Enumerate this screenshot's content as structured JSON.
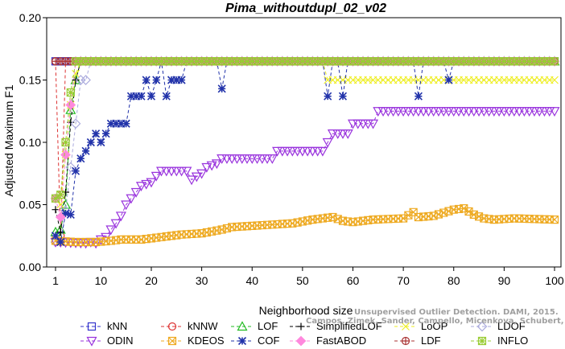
{
  "chart_data": {
    "type": "line",
    "title": "Pima_withoutdupl_02_v02",
    "xlabel": "Neighborhood size",
    "ylabel": "Adjusted Maximum F1",
    "xlim": [
      1,
      100
    ],
    "ylim": [
      0,
      0.2
    ],
    "xticks": [
      1,
      10,
      20,
      30,
      40,
      50,
      60,
      70,
      80,
      90,
      100
    ],
    "yticks": [
      0,
      0.05,
      0.1,
      0.15,
      0.2
    ],
    "ytick_labels": [
      "0.00",
      "0.05",
      "0.10",
      "0.15",
      "0.20"
    ],
    "grid": false,
    "legend_position": "bottom",
    "watermark": [
      "Campos, Zimek, Sander, Campello, Micenkova, Schubert, Assent, Houle",
      "Unsupervised Outlier Detection. DAMI, 2015."
    ],
    "series": [
      {
        "name": "kNN",
        "color": "#3333cc",
        "marker": "square",
        "dash": "4,3",
        "points": [
          [
            1,
            0.165
          ],
          [
            100,
            0.165
          ]
        ]
      },
      {
        "name": "kNNW",
        "color": "#dd3333",
        "marker": "circle",
        "dash": "4,3",
        "points": [
          [
            1,
            0.165
          ],
          [
            2,
            0.025
          ],
          [
            3,
            0.165
          ],
          [
            100,
            0.165
          ]
        ]
      },
      {
        "name": "LOF",
        "color": "#22bb22",
        "marker": "triangle-up",
        "dash": "4,3",
        "points": [
          [
            1,
            0.028
          ],
          [
            2,
            0.03
          ],
          [
            3,
            0.05
          ],
          [
            4,
            0.126
          ],
          [
            5,
            0.15
          ],
          [
            6,
            0.165
          ],
          [
            100,
            0.165
          ]
        ]
      },
      {
        "name": "SimplifiedLOF",
        "color": "#000000",
        "marker": "plus",
        "dash": "4,3",
        "points": [
          [
            1,
            0.046
          ],
          [
            2,
            0.028
          ],
          [
            3,
            0.06
          ],
          [
            4,
            0.116
          ],
          [
            5,
            0.15
          ],
          [
            6,
            0.165
          ],
          [
            100,
            0.165
          ]
        ]
      },
      {
        "name": "LoOP",
        "color": "#eeee22",
        "marker": "x",
        "dash": "4,3",
        "points": [
          [
            1,
            0.055
          ],
          [
            2,
            0.05
          ],
          [
            3,
            0.09
          ],
          [
            4,
            0.13
          ],
          [
            5,
            0.155
          ],
          [
            6,
            0.165
          ],
          [
            54,
            0.165
          ],
          [
            55,
            0.15
          ],
          [
            100,
            0.15
          ]
        ]
      },
      {
        "name": "LDOF",
        "color": "#aaaadd",
        "marker": "diamond",
        "dash": "4,3",
        "points": [
          [
            1,
            0.02
          ],
          [
            2,
            0.02
          ],
          [
            3,
            0.045
          ],
          [
            4,
            0.08
          ],
          [
            5,
            0.115
          ],
          [
            6,
            0.15
          ],
          [
            7,
            0.15
          ],
          [
            8,
            0.165
          ],
          [
            100,
            0.165
          ]
        ]
      },
      {
        "name": "ODIN",
        "color": "#9933dd",
        "marker": "triangle-down",
        "dash": "4,3",
        "points": [
          [
            1,
            0.02
          ],
          [
            7,
            0.019
          ],
          [
            8,
            0.02
          ],
          [
            9,
            0.019
          ],
          [
            10,
            0.022
          ],
          [
            11,
            0.024
          ],
          [
            12,
            0.03
          ],
          [
            13,
            0.035
          ],
          [
            14,
            0.041
          ],
          [
            15,
            0.05
          ],
          [
            16,
            0.055
          ],
          [
            17,
            0.06
          ],
          [
            18,
            0.065
          ],
          [
            20,
            0.068
          ],
          [
            21,
            0.073
          ],
          [
            22,
            0.077
          ],
          [
            27,
            0.077
          ],
          [
            28,
            0.07
          ],
          [
            30,
            0.075
          ],
          [
            31,
            0.08
          ],
          [
            33,
            0.083
          ],
          [
            34,
            0.087
          ],
          [
            44,
            0.087
          ],
          [
            45,
            0.093
          ],
          [
            54,
            0.093
          ],
          [
            55,
            0.1
          ],
          [
            56,
            0.107
          ],
          [
            59,
            0.107
          ],
          [
            60,
            0.115
          ],
          [
            64,
            0.115
          ],
          [
            65,
            0.125
          ],
          [
            100,
            0.125
          ]
        ]
      },
      {
        "name": "KDEOS",
        "color": "#eeaa22",
        "marker": "square-x",
        "dash": "4,3",
        "points": [
          [
            1,
            0.021
          ],
          [
            5,
            0.02
          ],
          [
            9,
            0.02
          ],
          [
            12,
            0.021
          ],
          [
            14,
            0.022
          ],
          [
            18,
            0.022
          ],
          [
            22,
            0.024
          ],
          [
            26,
            0.026
          ],
          [
            30,
            0.027
          ],
          [
            34,
            0.03
          ],
          [
            36,
            0.032
          ],
          [
            40,
            0.033
          ],
          [
            44,
            0.034
          ],
          [
            48,
            0.035
          ],
          [
            52,
            0.038
          ],
          [
            56,
            0.04
          ],
          [
            58,
            0.037
          ],
          [
            60,
            0.036
          ],
          [
            64,
            0.038
          ],
          [
            70,
            0.039
          ],
          [
            72,
            0.044
          ],
          [
            73,
            0.04
          ],
          [
            76,
            0.041
          ],
          [
            80,
            0.046
          ],
          [
            82,
            0.047
          ],
          [
            84,
            0.042
          ],
          [
            86,
            0.039
          ],
          [
            88,
            0.038
          ],
          [
            92,
            0.039
          ],
          [
            100,
            0.038
          ]
        ]
      },
      {
        "name": "COF",
        "color": "#2233aa",
        "marker": "star",
        "dash": "4,3",
        "points": [
          [
            1,
            0.025
          ],
          [
            2,
            0.02
          ],
          [
            3,
            0.043
          ],
          [
            4,
            0.042
          ],
          [
            5,
            0.077
          ],
          [
            6,
            0.087
          ],
          [
            7,
            0.093
          ],
          [
            8,
            0.1
          ],
          [
            9,
            0.107
          ],
          [
            10,
            0.1
          ],
          [
            11,
            0.107
          ],
          [
            12,
            0.115
          ],
          [
            15,
            0.115
          ],
          [
            16,
            0.137
          ],
          [
            18,
            0.137
          ],
          [
            19,
            0.15
          ],
          [
            20,
            0.137
          ],
          [
            21,
            0.15
          ],
          [
            22,
            0.165
          ],
          [
            23,
            0.137
          ],
          [
            24,
            0.15
          ],
          [
            26,
            0.15
          ],
          [
            27,
            0.165
          ],
          [
            33,
            0.165
          ],
          [
            34,
            0.143
          ],
          [
            35,
            0.165
          ],
          [
            54,
            0.165
          ],
          [
            55,
            0.137
          ],
          [
            56,
            0.165
          ],
          [
            57,
            0.165
          ],
          [
            58,
            0.137
          ],
          [
            59,
            0.165
          ],
          [
            72,
            0.165
          ],
          [
            73,
            0.137
          ],
          [
            74,
            0.165
          ],
          [
            78,
            0.165
          ],
          [
            79,
            0.15
          ],
          [
            80,
            0.165
          ],
          [
            100,
            0.165
          ]
        ]
      },
      {
        "name": "FastABOD",
        "color": "#ff88dd",
        "marker": "diamond-filled",
        "dash": "4,3",
        "points": [
          [
            1,
            0.055
          ],
          [
            2,
            0.04
          ],
          [
            3,
            0.09
          ],
          [
            4,
            0.13
          ],
          [
            5,
            0.165
          ],
          [
            100,
            0.165
          ]
        ]
      },
      {
        "name": "LDF",
        "color": "#aa3333",
        "marker": "circle-plus",
        "dash": "4,3",
        "points": [
          [
            1,
            0.165
          ],
          [
            100,
            0.165
          ]
        ]
      },
      {
        "name": "INFLO",
        "color": "#99cc33",
        "marker": "square-star",
        "dash": "4,3",
        "points": [
          [
            1,
            0.055
          ],
          [
            2,
            0.058
          ],
          [
            3,
            0.1
          ],
          [
            4,
            0.14
          ],
          [
            5,
            0.165
          ],
          [
            100,
            0.165
          ]
        ]
      }
    ]
  }
}
